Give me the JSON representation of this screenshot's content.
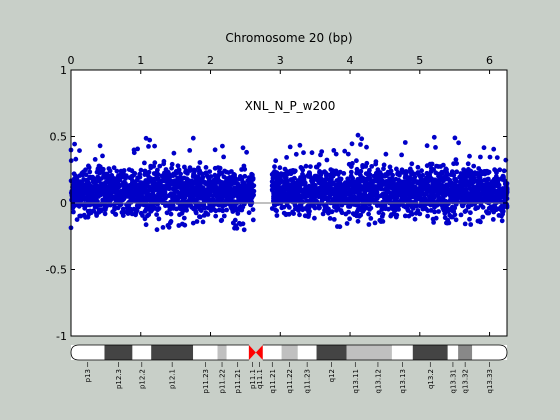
{
  "chart_data": {
    "type": "scatter",
    "title": "Chromosome 20 (bp)",
    "annotation": "XNL_N_P_w200",
    "x_tick_labels": [
      "0",
      "1",
      "2",
      "3",
      "4",
      "5",
      "6"
    ],
    "y_tick_labels": [
      "1",
      "0.5",
      "0",
      "-0.5",
      "-1"
    ],
    "xlim": [
      0,
      6.25
    ],
    "ylim": [
      -1,
      1
    ],
    "grid": false,
    "marker_color": "#0000c8",
    "zero_line_color": "#808080",
    "gap": [
      2.62,
      2.88
    ],
    "point_density": 360,
    "series": [
      {
        "profile": {
          "x": [
            0.0,
            0.3,
            0.6,
            0.9,
            1.2,
            1.5,
            1.8,
            2.1,
            2.4,
            2.62,
            2.88,
            3.2,
            3.5,
            3.8,
            4.1,
            4.4,
            4.7,
            5.0,
            5.3,
            5.6,
            5.9,
            6.25
          ],
          "y_upper": [
            0.45,
            0.42,
            0.5,
            0.46,
            0.52,
            0.49,
            0.5,
            0.47,
            0.44,
            0.4,
            0.43,
            0.46,
            0.48,
            0.44,
            0.52,
            0.5,
            0.46,
            0.48,
            0.55,
            0.48,
            0.45,
            0.42
          ],
          "y_median": [
            0.08,
            0.09,
            0.1,
            0.09,
            0.1,
            0.1,
            0.09,
            0.09,
            0.08,
            0.08,
            0.09,
            0.09,
            0.1,
            0.09,
            0.1,
            0.1,
            0.09,
            0.1,
            0.1,
            0.09,
            0.09,
            0.08
          ],
          "y_lower": [
            -0.2,
            -0.1,
            -0.1,
            -0.12,
            -0.2,
            -0.22,
            -0.18,
            -0.15,
            -0.2,
            -0.32,
            -0.1,
            -0.08,
            -0.12,
            -0.2,
            -0.14,
            -0.18,
            -0.12,
            -0.16,
            -0.14,
            -0.18,
            -0.14,
            -0.14
          ]
        }
      }
    ]
  },
  "ideogram": {
    "bands": [
      {
        "label": "p13",
        "start": 0.0,
        "end": 0.48,
        "color": "#ffffff"
      },
      {
        "label": "p12.3",
        "start": 0.48,
        "end": 0.88,
        "color": "#444444"
      },
      {
        "label": "p12.2",
        "start": 0.88,
        "end": 1.15,
        "color": "#ffffff"
      },
      {
        "label": "p12.1",
        "start": 1.15,
        "end": 1.75,
        "color": "#444444"
      },
      {
        "label": "p11.23",
        "start": 1.75,
        "end": 2.1,
        "color": "#ffffff"
      },
      {
        "label": "p11.22",
        "start": 2.1,
        "end": 2.23,
        "color": "#c0c0c0"
      },
      {
        "label": "p11.21",
        "start": 2.23,
        "end": 2.55,
        "color": "#ffffff"
      },
      {
        "label": "p11.1",
        "start": 2.55,
        "end": 2.65,
        "color": "#ff0000"
      },
      {
        "label": "q11.1",
        "start": 2.65,
        "end": 2.75,
        "color": "#ff0000"
      },
      {
        "label": "q11.21",
        "start": 2.75,
        "end": 3.02,
        "color": "#ffffff"
      },
      {
        "label": "q11.22",
        "start": 3.02,
        "end": 3.25,
        "color": "#c0c0c0"
      },
      {
        "label": "q11.23",
        "start": 3.25,
        "end": 3.52,
        "color": "#ffffff"
      },
      {
        "label": "q12",
        "start": 3.52,
        "end": 3.95,
        "color": "#444444"
      },
      {
        "label": "q13.11",
        "start": 3.95,
        "end": 4.2,
        "color": "#c0c0c0"
      },
      {
        "label": "q13.12",
        "start": 4.2,
        "end": 4.6,
        "color": "#c0c0c0"
      },
      {
        "label": "q13.13",
        "start": 4.6,
        "end": 4.9,
        "color": "#ffffff"
      },
      {
        "label": "q13.2",
        "start": 4.9,
        "end": 5.4,
        "color": "#444444"
      },
      {
        "label": "q13.31",
        "start": 5.4,
        "end": 5.55,
        "color": "#ffffff"
      },
      {
        "label": "q13.32",
        "start": 5.55,
        "end": 5.75,
        "color": "#888888"
      },
      {
        "label": "q13.33",
        "start": 5.75,
        "end": 6.25,
        "color": "#ffffff"
      }
    ]
  }
}
